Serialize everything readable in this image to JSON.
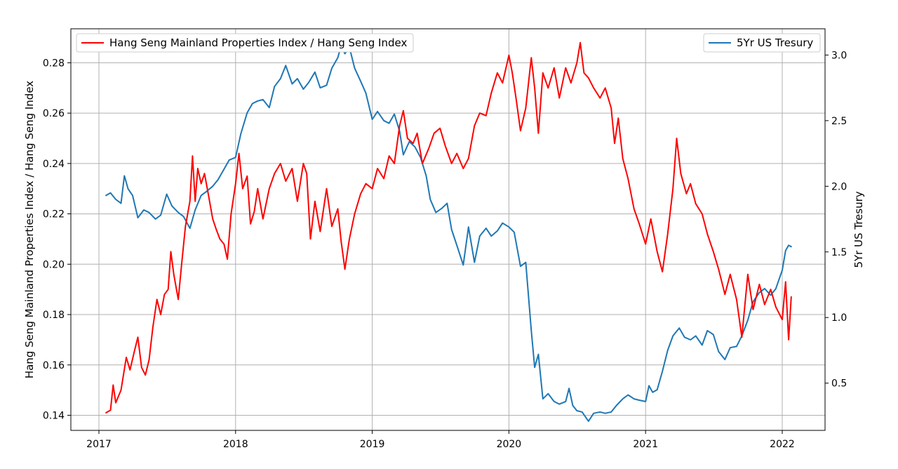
{
  "chart_data": {
    "type": "line",
    "xlabel": "",
    "x_ticks": [
      "2017",
      "2018",
      "2019",
      "2020",
      "2021",
      "2022"
    ],
    "y_left": {
      "label": "Hang Seng Mainland Properties Index / Hang Seng Index",
      "lim": [
        0.134,
        0.2935
      ],
      "ticks": [
        "0.14",
        "0.16",
        "0.18",
        "0.20",
        "0.22",
        "0.24",
        "0.26",
        "0.28"
      ]
    },
    "y_right": {
      "label": "5Yr US Tresury",
      "lim": [
        0.14,
        3.2
      ],
      "ticks": [
        "0.5",
        "1.0",
        "1.5",
        "2.0",
        "2.5",
        "3.0"
      ]
    },
    "grid": true,
    "legend_left": {
      "placement": "top-left",
      "label": "Hang Seng Mainland Properties Index / Hang Seng Index"
    },
    "legend_right": {
      "placement": "top-right",
      "label": "5Yr US Tresury"
    },
    "series": [
      {
        "name": "Hang Seng Mainland Properties Index / Hang Seng Index",
        "axis": "left",
        "color": "#ff0000",
        "points": [
          [
            "2017-01-20",
            0.141
          ],
          [
            "2017-02-01",
            0.142
          ],
          [
            "2017-02-08",
            0.152
          ],
          [
            "2017-02-15",
            0.145
          ],
          [
            "2017-03-01",
            0.15
          ],
          [
            "2017-03-15",
            0.163
          ],
          [
            "2017-03-25",
            0.158
          ],
          [
            "2017-04-05",
            0.165
          ],
          [
            "2017-04-15",
            0.171
          ],
          [
            "2017-04-25",
            0.159
          ],
          [
            "2017-05-05",
            0.156
          ],
          [
            "2017-05-15",
            0.162
          ],
          [
            "2017-05-25",
            0.175
          ],
          [
            "2017-06-05",
            0.186
          ],
          [
            "2017-06-15",
            0.18
          ],
          [
            "2017-06-25",
            0.188
          ],
          [
            "2017-07-05",
            0.19
          ],
          [
            "2017-07-12",
            0.205
          ],
          [
            "2017-07-20",
            0.196
          ],
          [
            "2017-08-01",
            0.186
          ],
          [
            "2017-08-10",
            0.2
          ],
          [
            "2017-08-20",
            0.215
          ],
          [
            "2017-09-01",
            0.225
          ],
          [
            "2017-09-08",
            0.243
          ],
          [
            "2017-09-15",
            0.225
          ],
          [
            "2017-09-22",
            0.238
          ],
          [
            "2017-10-01",
            0.232
          ],
          [
            "2017-10-10",
            0.236
          ],
          [
            "2017-10-20",
            0.228
          ],
          [
            "2017-11-01",
            0.218
          ],
          [
            "2017-11-10",
            0.214
          ],
          [
            "2017-11-20",
            0.21
          ],
          [
            "2017-12-01",
            0.208
          ],
          [
            "2017-12-10",
            0.202
          ],
          [
            "2017-12-20",
            0.22
          ],
          [
            "2018-01-01",
            0.232
          ],
          [
            "2018-01-10",
            0.244
          ],
          [
            "2018-01-20",
            0.23
          ],
          [
            "2018-02-01",
            0.235
          ],
          [
            "2018-02-10",
            0.216
          ],
          [
            "2018-02-20",
            0.221
          ],
          [
            "2018-03-01",
            0.23
          ],
          [
            "2018-03-15",
            0.218
          ],
          [
            "2018-04-01",
            0.23
          ],
          [
            "2018-04-15",
            0.236
          ],
          [
            "2018-05-01",
            0.24
          ],
          [
            "2018-05-15",
            0.233
          ],
          [
            "2018-06-01",
            0.238
          ],
          [
            "2018-06-15",
            0.225
          ],
          [
            "2018-07-01",
            0.24
          ],
          [
            "2018-07-10",
            0.236
          ],
          [
            "2018-07-20",
            0.21
          ],
          [
            "2018-08-01",
            0.225
          ],
          [
            "2018-08-15",
            0.213
          ],
          [
            "2018-09-01",
            0.23
          ],
          [
            "2018-09-15",
            0.215
          ],
          [
            "2018-10-01",
            0.222
          ],
          [
            "2018-10-10",
            0.209
          ],
          [
            "2018-10-20",
            0.198
          ],
          [
            "2018-11-01",
            0.21
          ],
          [
            "2018-11-15",
            0.22
          ],
          [
            "2018-12-01",
            0.228
          ],
          [
            "2018-12-15",
            0.232
          ],
          [
            "2019-01-01",
            0.23
          ],
          [
            "2019-01-15",
            0.238
          ],
          [
            "2019-02-01",
            0.234
          ],
          [
            "2019-02-15",
            0.243
          ],
          [
            "2019-03-01",
            0.24
          ],
          [
            "2019-03-15",
            0.255
          ],
          [
            "2019-03-25",
            0.261
          ],
          [
            "2019-04-05",
            0.25
          ],
          [
            "2019-04-20",
            0.248
          ],
          [
            "2019-05-01",
            0.252
          ],
          [
            "2019-05-15",
            0.24
          ],
          [
            "2019-06-01",
            0.246
          ],
          [
            "2019-06-15",
            0.252
          ],
          [
            "2019-07-01",
            0.254
          ],
          [
            "2019-07-15",
            0.247
          ],
          [
            "2019-08-01",
            0.24
          ],
          [
            "2019-08-15",
            0.244
          ],
          [
            "2019-09-01",
            0.238
          ],
          [
            "2019-09-15",
            0.242
          ],
          [
            "2019-10-01",
            0.255
          ],
          [
            "2019-10-15",
            0.26
          ],
          [
            "2019-11-01",
            0.259
          ],
          [
            "2019-11-15",
            0.268
          ],
          [
            "2019-12-01",
            0.276
          ],
          [
            "2019-12-15",
            0.272
          ],
          [
            "2020-01-01",
            0.283
          ],
          [
            "2020-01-10",
            0.276
          ],
          [
            "2020-01-20",
            0.266
          ],
          [
            "2020-02-01",
            0.253
          ],
          [
            "2020-02-15",
            0.262
          ],
          [
            "2020-03-01",
            0.282
          ],
          [
            "2020-03-10",
            0.27
          ],
          [
            "2020-03-20",
            0.252
          ],
          [
            "2020-04-01",
            0.276
          ],
          [
            "2020-04-15",
            0.27
          ],
          [
            "2020-05-01",
            0.278
          ],
          [
            "2020-05-15",
            0.266
          ],
          [
            "2020-06-01",
            0.278
          ],
          [
            "2020-06-15",
            0.272
          ],
          [
            "2020-07-01",
            0.28
          ],
          [
            "2020-07-10",
            0.288
          ],
          [
            "2020-07-20",
            0.276
          ],
          [
            "2020-08-01",
            0.274
          ],
          [
            "2020-08-15",
            0.27
          ],
          [
            "2020-09-01",
            0.266
          ],
          [
            "2020-09-15",
            0.27
          ],
          [
            "2020-10-01",
            0.262
          ],
          [
            "2020-10-10",
            0.248
          ],
          [
            "2020-10-20",
            0.258
          ],
          [
            "2020-11-01",
            0.242
          ],
          [
            "2020-11-15",
            0.234
          ],
          [
            "2020-12-01",
            0.222
          ],
          [
            "2020-12-15",
            0.216
          ],
          [
            "2021-01-01",
            0.208
          ],
          [
            "2021-01-15",
            0.218
          ],
          [
            "2021-02-01",
            0.205
          ],
          [
            "2021-02-15",
            0.197
          ],
          [
            "2021-03-01",
            0.212
          ],
          [
            "2021-03-15",
            0.23
          ],
          [
            "2021-03-25",
            0.25
          ],
          [
            "2021-04-05",
            0.236
          ],
          [
            "2021-04-20",
            0.228
          ],
          [
            "2021-05-01",
            0.232
          ],
          [
            "2021-05-15",
            0.224
          ],
          [
            "2021-06-01",
            0.22
          ],
          [
            "2021-06-15",
            0.212
          ],
          [
            "2021-07-01",
            0.205
          ],
          [
            "2021-07-15",
            0.198
          ],
          [
            "2021-08-01",
            0.188
          ],
          [
            "2021-08-15",
            0.196
          ],
          [
            "2021-09-01",
            0.186
          ],
          [
            "2021-09-15",
            0.171
          ],
          [
            "2021-10-01",
            0.196
          ],
          [
            "2021-10-15",
            0.182
          ],
          [
            "2021-11-01",
            0.192
          ],
          [
            "2021-11-15",
            0.184
          ],
          [
            "2021-12-01",
            0.19
          ],
          [
            "2021-12-15",
            0.183
          ],
          [
            "2022-01-01",
            0.178
          ],
          [
            "2022-01-10",
            0.193
          ],
          [
            "2022-01-18",
            0.17
          ],
          [
            "2022-01-25",
            0.187
          ]
        ]
      },
      {
        "name": "5Yr US Tresury",
        "axis": "right",
        "color": "#1f77b4",
        "points": [
          [
            "2017-01-20",
            1.93
          ],
          [
            "2017-02-01",
            1.95
          ],
          [
            "2017-02-15",
            1.9
          ],
          [
            "2017-03-01",
            1.87
          ],
          [
            "2017-03-10",
            2.08
          ],
          [
            "2017-03-20",
            1.98
          ],
          [
            "2017-04-01",
            1.93
          ],
          [
            "2017-04-15",
            1.76
          ],
          [
            "2017-05-01",
            1.82
          ],
          [
            "2017-05-15",
            1.8
          ],
          [
            "2017-06-01",
            1.75
          ],
          [
            "2017-06-15",
            1.78
          ],
          [
            "2017-07-01",
            1.94
          ],
          [
            "2017-07-15",
            1.85
          ],
          [
            "2017-08-01",
            1.8
          ],
          [
            "2017-08-15",
            1.77
          ],
          [
            "2017-09-01",
            1.68
          ],
          [
            "2017-09-15",
            1.82
          ],
          [
            "2017-10-01",
            1.93
          ],
          [
            "2017-10-15",
            1.96
          ],
          [
            "2017-11-01",
            2.0
          ],
          [
            "2017-11-15",
            2.05
          ],
          [
            "2017-12-01",
            2.13
          ],
          [
            "2017-12-15",
            2.2
          ],
          [
            "2018-01-01",
            2.22
          ],
          [
            "2018-01-15",
            2.4
          ],
          [
            "2018-02-01",
            2.56
          ],
          [
            "2018-02-15",
            2.63
          ],
          [
            "2018-03-01",
            2.65
          ],
          [
            "2018-03-15",
            2.66
          ],
          [
            "2018-04-01",
            2.6
          ],
          [
            "2018-04-15",
            2.76
          ],
          [
            "2018-05-01",
            2.82
          ],
          [
            "2018-05-15",
            2.92
          ],
          [
            "2018-06-01",
            2.78
          ],
          [
            "2018-06-15",
            2.82
          ],
          [
            "2018-07-01",
            2.74
          ],
          [
            "2018-07-15",
            2.79
          ],
          [
            "2018-08-01",
            2.87
          ],
          [
            "2018-08-15",
            2.75
          ],
          [
            "2018-09-01",
            2.77
          ],
          [
            "2018-09-15",
            2.9
          ],
          [
            "2018-10-01",
            2.98
          ],
          [
            "2018-10-10",
            3.07
          ],
          [
            "2018-10-20",
            3.01
          ],
          [
            "2018-11-01",
            3.06
          ],
          [
            "2018-11-15",
            2.9
          ],
          [
            "2018-12-01",
            2.8
          ],
          [
            "2018-12-15",
            2.71
          ],
          [
            "2019-01-01",
            2.51
          ],
          [
            "2019-01-15",
            2.57
          ],
          [
            "2019-02-01",
            2.5
          ],
          [
            "2019-02-15",
            2.48
          ],
          [
            "2019-03-01",
            2.55
          ],
          [
            "2019-03-15",
            2.42
          ],
          [
            "2019-03-25",
            2.24
          ],
          [
            "2019-04-10",
            2.34
          ],
          [
            "2019-04-25",
            2.3
          ],
          [
            "2019-05-10",
            2.22
          ],
          [
            "2019-05-25",
            2.08
          ],
          [
            "2019-06-05",
            1.9
          ],
          [
            "2019-06-20",
            1.8
          ],
          [
            "2019-07-05",
            1.83
          ],
          [
            "2019-07-20",
            1.87
          ],
          [
            "2019-08-01",
            1.67
          ],
          [
            "2019-08-15",
            1.55
          ],
          [
            "2019-09-01",
            1.4
          ],
          [
            "2019-09-15",
            1.69
          ],
          [
            "2019-10-01",
            1.42
          ],
          [
            "2019-10-15",
            1.62
          ],
          [
            "2019-11-01",
            1.68
          ],
          [
            "2019-11-15",
            1.62
          ],
          [
            "2019-12-01",
            1.66
          ],
          [
            "2019-12-15",
            1.72
          ],
          [
            "2020-01-01",
            1.69
          ],
          [
            "2020-01-15",
            1.65
          ],
          [
            "2020-02-01",
            1.39
          ],
          [
            "2020-02-15",
            1.42
          ],
          [
            "2020-03-01",
            0.9
          ],
          [
            "2020-03-10",
            0.62
          ],
          [
            "2020-03-20",
            0.72
          ],
          [
            "2020-04-01",
            0.38
          ],
          [
            "2020-04-15",
            0.42
          ],
          [
            "2020-05-01",
            0.36
          ],
          [
            "2020-05-15",
            0.34
          ],
          [
            "2020-06-01",
            0.36
          ],
          [
            "2020-06-10",
            0.46
          ],
          [
            "2020-06-20",
            0.33
          ],
          [
            "2020-07-01",
            0.29
          ],
          [
            "2020-07-15",
            0.28
          ],
          [
            "2020-08-01",
            0.21
          ],
          [
            "2020-08-15",
            0.27
          ],
          [
            "2020-09-01",
            0.28
          ],
          [
            "2020-09-15",
            0.27
          ],
          [
            "2020-10-01",
            0.28
          ],
          [
            "2020-10-15",
            0.33
          ],
          [
            "2020-11-01",
            0.38
          ],
          [
            "2020-11-15",
            0.41
          ],
          [
            "2020-12-01",
            0.38
          ],
          [
            "2020-12-15",
            0.37
          ],
          [
            "2021-01-01",
            0.36
          ],
          [
            "2021-01-10",
            0.48
          ],
          [
            "2021-01-20",
            0.43
          ],
          [
            "2021-02-01",
            0.45
          ],
          [
            "2021-02-15",
            0.59
          ],
          [
            "2021-03-01",
            0.75
          ],
          [
            "2021-03-15",
            0.86
          ],
          [
            "2021-04-01",
            0.92
          ],
          [
            "2021-04-15",
            0.85
          ],
          [
            "2021-05-01",
            0.83
          ],
          [
            "2021-05-15",
            0.86
          ],
          [
            "2021-06-01",
            0.79
          ],
          [
            "2021-06-15",
            0.9
          ],
          [
            "2021-07-01",
            0.87
          ],
          [
            "2021-07-15",
            0.74
          ],
          [
            "2021-08-01",
            0.68
          ],
          [
            "2021-08-15",
            0.77
          ],
          [
            "2021-09-01",
            0.78
          ],
          [
            "2021-09-15",
            0.86
          ],
          [
            "2021-10-01",
            0.98
          ],
          [
            "2021-10-15",
            1.12
          ],
          [
            "2021-11-01",
            1.19
          ],
          [
            "2021-11-15",
            1.22
          ],
          [
            "2021-12-01",
            1.17
          ],
          [
            "2021-12-15",
            1.22
          ],
          [
            "2022-01-01",
            1.36
          ],
          [
            "2022-01-10",
            1.51
          ],
          [
            "2022-01-18",
            1.55
          ],
          [
            "2022-01-25",
            1.54
          ]
        ]
      }
    ]
  }
}
